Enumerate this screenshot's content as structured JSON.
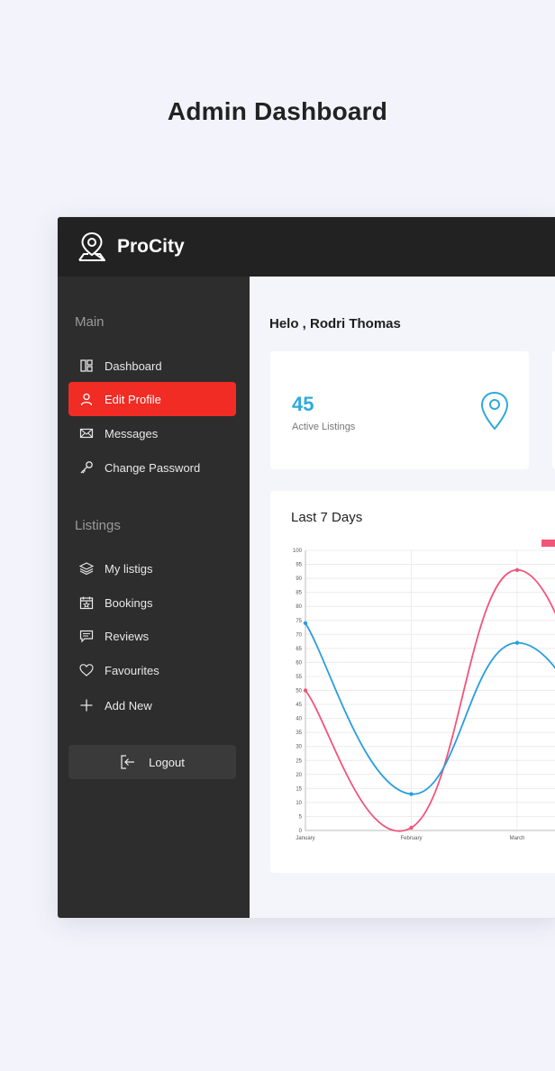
{
  "page": {
    "heading": "Admin Dashboard"
  },
  "brand": {
    "name": "ProCity",
    "logo_icon": "map-pin-logo-icon"
  },
  "sidebar": {
    "main_title": "Main",
    "main_items": [
      {
        "label": "Dashboard",
        "icon": "dashboard-icon",
        "active": false
      },
      {
        "label": "Edit Profile",
        "icon": "user-icon",
        "active": true
      },
      {
        "label": "Messages",
        "icon": "envelope-icon",
        "active": false
      },
      {
        "label": "Change Password",
        "icon": "key-icon",
        "active": false
      }
    ],
    "listings_title": "Listings",
    "listing_items": [
      {
        "label": "My listigs",
        "icon": "layers-icon"
      },
      {
        "label": "Bookings",
        "icon": "calendar-star-icon"
      },
      {
        "label": "Reviews",
        "icon": "comment-icon"
      },
      {
        "label": "Favourites",
        "icon": "heart-icon"
      },
      {
        "label": "Add New",
        "icon": "plus-icon"
      }
    ],
    "logout_label": "Logout"
  },
  "main": {
    "greeting": "Helo , Rodri Thomas",
    "stat": {
      "value": "45",
      "label": "Active Listings",
      "icon": "location-pin-icon"
    }
  },
  "colors": {
    "accent_red": "#f02c24",
    "stat_blue": "#2fa9dd",
    "series_pink": "#f2557a",
    "series_blue": "#2a9de0"
  },
  "chart_data": {
    "type": "line",
    "title": "Last 7 Days",
    "categories": [
      "January",
      "February",
      "March"
    ],
    "y_ticks": [
      "0",
      "5",
      "10",
      "15",
      "20",
      "25",
      "30",
      "35",
      "40",
      "45",
      "50",
      "55",
      "60",
      "65",
      "70",
      "75",
      "80",
      "85",
      "90",
      "95",
      "100"
    ],
    "ylim": [
      0,
      100
    ],
    "grid": true,
    "legend": "top-right",
    "series": [
      {
        "color": "#f2557a",
        "values": [
          50,
          1,
          93
        ]
      },
      {
        "color": "#2a9de0",
        "values": [
          74,
          13,
          67
        ]
      }
    ]
  }
}
